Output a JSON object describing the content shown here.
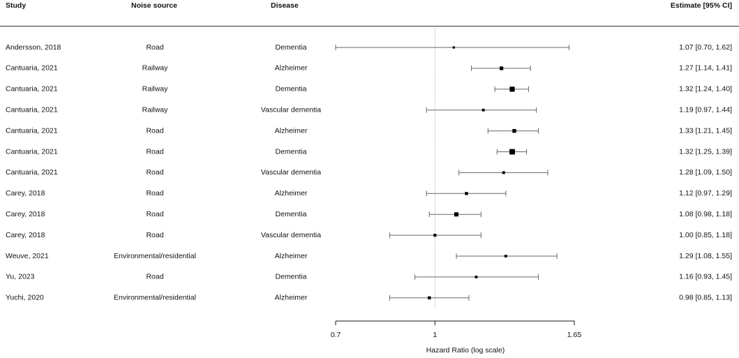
{
  "columns": {
    "study": "Study",
    "noise_source": "Noise source",
    "disease": "Disease",
    "estimate": "Estimate [95% CI]"
  },
  "chart_data": {
    "type": "forest",
    "xlabel": "Hazard Ratio (log scale)",
    "x_scale": "log",
    "xlim": [
      0.7,
      1.65
    ],
    "xticks": [
      0.7,
      1,
      1.65
    ],
    "xtick_labels": [
      "0.7",
      "1",
      "1.65"
    ],
    "reference_line": 1,
    "rows": [
      {
        "study": "Andersson, 2018",
        "noise": "Road",
        "disease": "Dementia",
        "est": 1.07,
        "lo": 0.7,
        "hi": 1.62,
        "label": "1.07 [0.70, 1.62]",
        "weight": 0.6
      },
      {
        "study": "Cantuaria, 2021",
        "noise": "Railway",
        "disease": "Alzheimer",
        "est": 1.27,
        "lo": 1.14,
        "hi": 1.41,
        "label": "1.27 [1.14, 1.41]",
        "weight": 1.6
      },
      {
        "study": "Cantuaria, 2021",
        "noise": "Railway",
        "disease": "Dementia",
        "est": 1.32,
        "lo": 1.24,
        "hi": 1.4,
        "label": "1.32 [1.24, 1.40]",
        "weight": 2.6
      },
      {
        "study": "Cantuaria, 2021",
        "noise": "Railway",
        "disease": "Vascular dementia",
        "est": 1.19,
        "lo": 0.97,
        "hi": 1.44,
        "label": "1.19 [0.97, 1.44]",
        "weight": 0.9
      },
      {
        "study": "Cantuaria, 2021",
        "noise": "Road",
        "disease": "Alzheimer",
        "est": 1.33,
        "lo": 1.21,
        "hi": 1.45,
        "label": "1.33 [1.21, 1.45]",
        "weight": 1.7
      },
      {
        "study": "Cantuaria, 2021",
        "noise": "Road",
        "disease": "Dementia",
        "est": 1.32,
        "lo": 1.25,
        "hi": 1.39,
        "label": "1.32 [1.25, 1.39]",
        "weight": 2.9
      },
      {
        "study": "Cantuaria, 2021",
        "noise": "Road",
        "disease": "Vascular dementia",
        "est": 1.28,
        "lo": 1.09,
        "hi": 1.5,
        "label": "1.28 [1.09, 1.50]",
        "weight": 1.0
      },
      {
        "study": "Carey, 2018",
        "noise": "Road",
        "disease": "Alzheimer",
        "est": 1.12,
        "lo": 0.97,
        "hi": 1.29,
        "label": "1.12 [0.97, 1.29]",
        "weight": 1.2
      },
      {
        "study": "Carey, 2018",
        "noise": "Road",
        "disease": "Dementia",
        "est": 1.08,
        "lo": 0.98,
        "hi": 1.18,
        "label": "1.08 [0.98, 1.18]",
        "weight": 2.0
      },
      {
        "study": "Carey, 2018",
        "noise": "Road",
        "disease": "Vascular dementia",
        "est": 1.0,
        "lo": 0.85,
        "hi": 1.18,
        "label": "1.00 [0.85, 1.18]",
        "weight": 1.1
      },
      {
        "study": "Weuve, 2021",
        "noise": "Environmental/residential",
        "disease": "Alzheimer",
        "est": 1.29,
        "lo": 1.08,
        "hi": 1.55,
        "label": "1.29 [1.08, 1.55]",
        "weight": 0.9
      },
      {
        "study": "Yu, 2023",
        "noise": "Road",
        "disease": "Dementia",
        "est": 1.16,
        "lo": 0.93,
        "hi": 1.45,
        "label": "1.16 [0.93, 1.45]",
        "weight": 0.9
      },
      {
        "study": "Yuchi, 2020",
        "noise": "Environmental/residential",
        "disease": "Alzheimer",
        "est": 0.98,
        "lo": 0.85,
        "hi": 1.13,
        "label": "0.98 [0.85, 1.13]",
        "weight": 1.2
      }
    ]
  }
}
